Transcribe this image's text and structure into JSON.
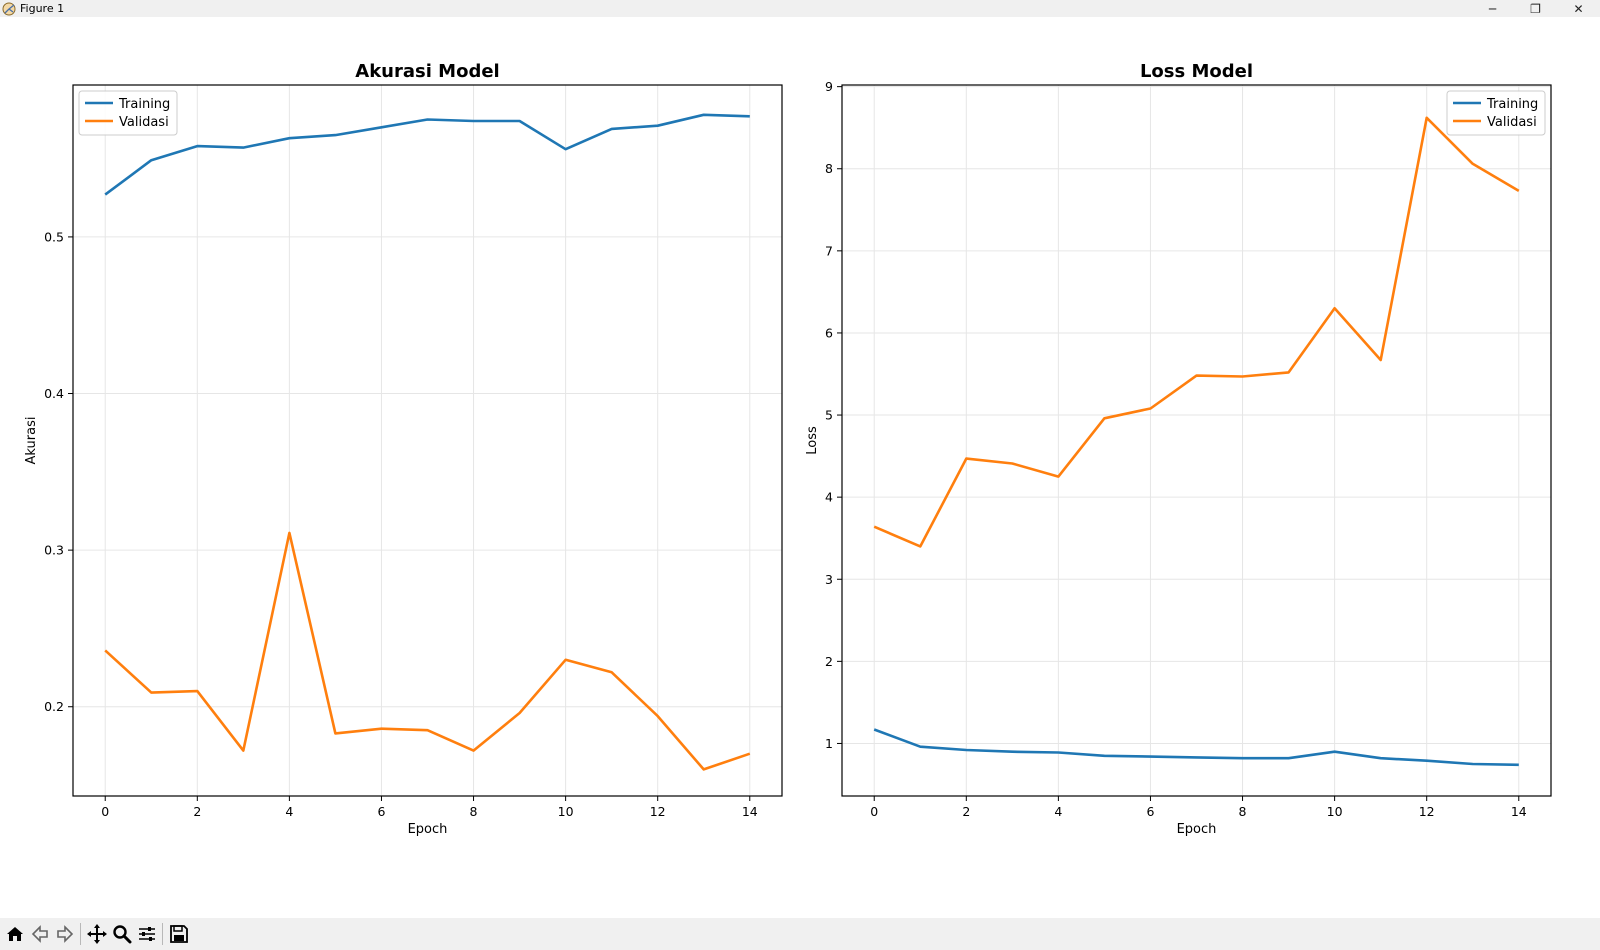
{
  "window": {
    "title": "Figure 1"
  },
  "window_controls": {
    "minimize": "─",
    "restore": "❐",
    "close": "✕"
  },
  "toolbar": {
    "buttons": [
      {
        "name": "home-button",
        "icon": "home-icon"
      },
      {
        "name": "back-button",
        "icon": "back-arrow-icon"
      },
      {
        "name": "forward-button",
        "icon": "forward-arrow-icon"
      },
      {
        "name": "pan-button",
        "icon": "move-icon"
      },
      {
        "name": "zoom-button",
        "icon": "magnifier-icon"
      },
      {
        "name": "configure-subplots-button",
        "icon": "sliders-icon"
      },
      {
        "name": "save-button",
        "icon": "save-icon"
      }
    ]
  },
  "colors": {
    "training": "#1f77b4",
    "validasi": "#ff7f0e",
    "grid": "#e6e6e6"
  },
  "chart_data": [
    {
      "type": "line",
      "title": "Akurasi Model",
      "xlabel": "Epoch",
      "ylabel": "Akurasi",
      "xlim": [
        -0.7,
        14.7
      ],
      "ylim": [
        0.143,
        0.597
      ],
      "xticks": [
        0,
        2,
        4,
        6,
        8,
        10,
        12,
        14
      ],
      "yticks": [
        0.2,
        0.3,
        0.4,
        0.5
      ],
      "grid": true,
      "legend_position": "upper left",
      "x": [
        0,
        1,
        2,
        3,
        4,
        5,
        6,
        7,
        8,
        9,
        10,
        11,
        12,
        13,
        14
      ],
      "series": [
        {
          "name": "Training",
          "values": [
            0.527,
            0.549,
            0.558,
            0.557,
            0.563,
            0.565,
            0.57,
            0.575,
            0.574,
            0.574,
            0.556,
            0.569,
            0.571,
            0.578,
            0.577
          ]
        },
        {
          "name": "Validasi",
          "values": [
            0.236,
            0.209,
            0.21,
            0.172,
            0.311,
            0.183,
            0.186,
            0.185,
            0.172,
            0.196,
            0.23,
            0.222,
            0.194,
            0.16,
            0.17
          ]
        }
      ]
    },
    {
      "type": "line",
      "title": "Loss Model",
      "xlabel": "Epoch",
      "ylabel": "Loss",
      "xlim": [
        -0.7,
        14.7
      ],
      "ylim": [
        0.36,
        9.02
      ],
      "xticks": [
        0,
        2,
        4,
        6,
        8,
        10,
        12,
        14
      ],
      "yticks": [
        1,
        2,
        3,
        4,
        5,
        6,
        7,
        8,
        9
      ],
      "grid": true,
      "legend_position": "upper right",
      "x": [
        0,
        1,
        2,
        3,
        4,
        5,
        6,
        7,
        8,
        9,
        10,
        11,
        12,
        13,
        14
      ],
      "series": [
        {
          "name": "Training",
          "values": [
            1.17,
            0.96,
            0.92,
            0.9,
            0.89,
            0.85,
            0.84,
            0.83,
            0.82,
            0.82,
            0.9,
            0.82,
            0.79,
            0.75,
            0.74
          ]
        },
        {
          "name": "Validasi",
          "values": [
            3.64,
            3.4,
            4.47,
            4.41,
            4.25,
            4.96,
            5.08,
            5.48,
            5.47,
            5.52,
            6.3,
            5.67,
            8.62,
            8.06,
            7.73
          ]
        }
      ]
    }
  ]
}
